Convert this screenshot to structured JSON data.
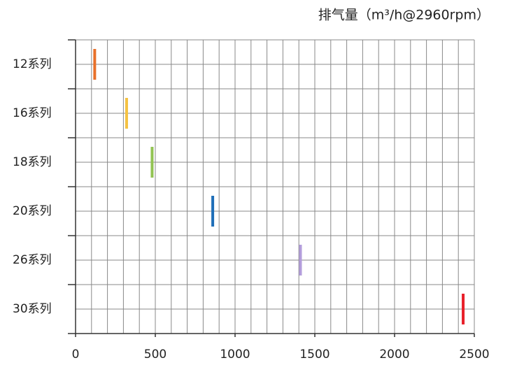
{
  "chart_data": {
    "type": "marker",
    "title": "排气量（m³/h@2960rpm）",
    "categories": [
      "12系列",
      "16系列",
      "18系列",
      "20系列",
      "26系列",
      "30系列"
    ],
    "values": [
      120,
      320,
      480,
      860,
      1410,
      2430
    ],
    "colors": [
      "#e8702a",
      "#f5c242",
      "#92c353",
      "#1f6fb8",
      "#b39ddb",
      "#e8202a"
    ],
    "xlim": [
      0,
      2500
    ],
    "xticks": [
      0,
      500,
      1000,
      1500,
      2000,
      2500
    ],
    "xgrid": [
      0,
      100,
      200,
      300,
      400,
      500,
      600,
      700,
      800,
      900,
      1000,
      1100,
      1200,
      1300,
      1400,
      1500,
      1600,
      1700,
      1800,
      1900,
      2000,
      2100,
      2200,
      2300,
      2400,
      2500
    ],
    "grid": true
  }
}
